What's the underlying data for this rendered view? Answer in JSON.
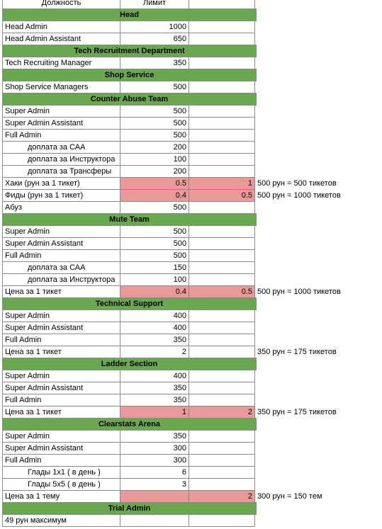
{
  "table": {
    "header": {
      "a": "Должность",
      "b": "Лимит"
    },
    "rows": [
      {
        "section": "Head"
      },
      {
        "a": "Head Admin",
        "b": "1000"
      },
      {
        "a": "Head Admin Assistant",
        "b": "650"
      },
      {
        "section": "Tech Recruitment Department"
      },
      {
        "a": "Tech Recruiting Manager",
        "b": "350"
      },
      {
        "section": "Shop Service"
      },
      {
        "a": "Shop Service Managers",
        "b": "500"
      },
      {
        "section": "Counter Abuse Team"
      },
      {
        "a": "Super Admin",
        "b": "500"
      },
      {
        "a": "Super Admin Assistant",
        "b": "500"
      },
      {
        "a": "Full Admin",
        "b": "500"
      },
      {
        "a": "доплата за САА",
        "b": "200",
        "indent": true
      },
      {
        "a": "доплата за Инструктора",
        "b": "100",
        "indent": true
      },
      {
        "a": "доплата за Трансферы",
        "b": "200",
        "indent": true
      },
      {
        "a": "Хаки (рун за 1 тикет)",
        "b": "0.5",
        "c": "1",
        "d": "500 рун = 500 тикетов",
        "highlight": true
      },
      {
        "a": "Фиды (рун за 1 тикет)",
        "b": "0.4",
        "c": "0.5",
        "d": "500 рун = 1000 тикетов",
        "highlight": true
      },
      {
        "a": "Абуз",
        "b": "500"
      },
      {
        "section": "Mute Team"
      },
      {
        "a": "Super Admin",
        "b": "500"
      },
      {
        "a": "Super Admin Assistant",
        "b": "500"
      },
      {
        "a": "Full Admin",
        "b": "500"
      },
      {
        "a": "доплата за САА",
        "b": "150",
        "indent": true
      },
      {
        "a": "доплата за Инструктора",
        "b": "100",
        "indent": true
      },
      {
        "a": "Цена за 1 тикет",
        "b": "0.4",
        "c": "0.5",
        "d": "500 рун = 1000 тикетов",
        "highlight": true
      },
      {
        "section": "Technical Support"
      },
      {
        "a": "Super Admin",
        "b": "400"
      },
      {
        "a": "Super Admin Assistant",
        "b": "400"
      },
      {
        "a": "Full Admin",
        "b": "350"
      },
      {
        "a": "Цена за 1 тикет",
        "b": "2",
        "d": "350 рун = 175 тикетов"
      },
      {
        "section": "Ladder Section"
      },
      {
        "a": "Super Admin",
        "b": "400"
      },
      {
        "a": "Super Admin Assistant",
        "b": "350"
      },
      {
        "a": "Full Admin",
        "b": "350"
      },
      {
        "a": "Цена за 1 тикет",
        "b": "1",
        "c": "2",
        "d": "350 рун = 175 тикетов",
        "highlight": true
      },
      {
        "section": "Clearstats Arena"
      },
      {
        "a": "Super Admin",
        "b": "350"
      },
      {
        "a": "Super Admin Assistant",
        "b": "300"
      },
      {
        "a": "Full Admin",
        "b": "300"
      },
      {
        "a": "Глады 1x1 ( в день )",
        "b": "6",
        "indent": true
      },
      {
        "a": "Глады 5x5 ( в день )",
        "b": "3",
        "indent": true
      },
      {
        "a": "Цена за 1 тему",
        "c": "2",
        "d": "300 рун = 150 тем",
        "highlight": true
      },
      {
        "section": "Trial Admin"
      },
      {
        "a": "49 рун максимум"
      }
    ]
  }
}
